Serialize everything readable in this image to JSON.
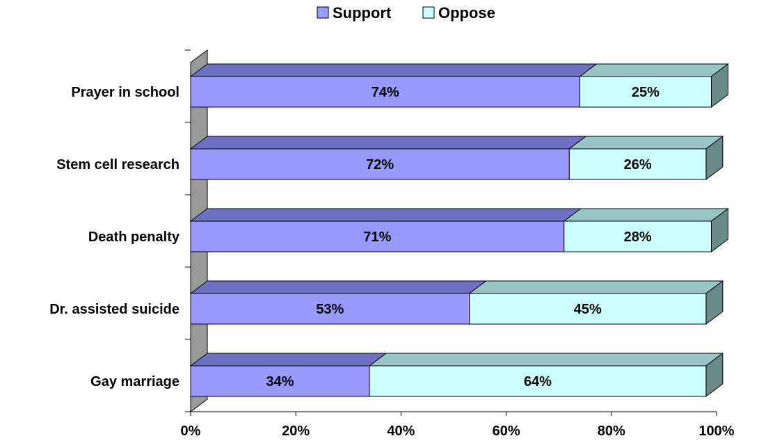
{
  "chart_data": {
    "type": "bar",
    "orientation": "horizontal",
    "stacked": true,
    "three_d": true,
    "categories": [
      "Prayer in school",
      "Stem cell research",
      "Death penalty",
      "Dr. assisted suicide",
      "Gay marriage"
    ],
    "series": [
      {
        "name": "Support",
        "values": [
          74,
          72,
          71,
          53,
          34
        ],
        "color": "#9999ff"
      },
      {
        "name": "Oppose",
        "values": [
          25,
          26,
          28,
          45,
          64
        ],
        "color": "#ccffff"
      }
    ],
    "data_labels": [
      [
        "74%",
        "72%",
        "71%",
        "53%",
        "34%"
      ],
      [
        "25%",
        "26%",
        "28%",
        "45%",
        "64%"
      ]
    ],
    "x_ticks": [
      "0%",
      "20%",
      "40%",
      "60%",
      "80%",
      "100%"
    ],
    "xlim": [
      0,
      100
    ],
    "legend": {
      "position": "top",
      "entries": [
        "Support",
        "Oppose"
      ]
    },
    "colors": {
      "support_front": "#9999ff",
      "support_top": "#7070c0",
      "oppose_front": "#ccffff",
      "oppose_top": "#99c4c4",
      "oppose_side": "#6b8a8a",
      "wall": "#999999",
      "outline": "#000000"
    }
  }
}
